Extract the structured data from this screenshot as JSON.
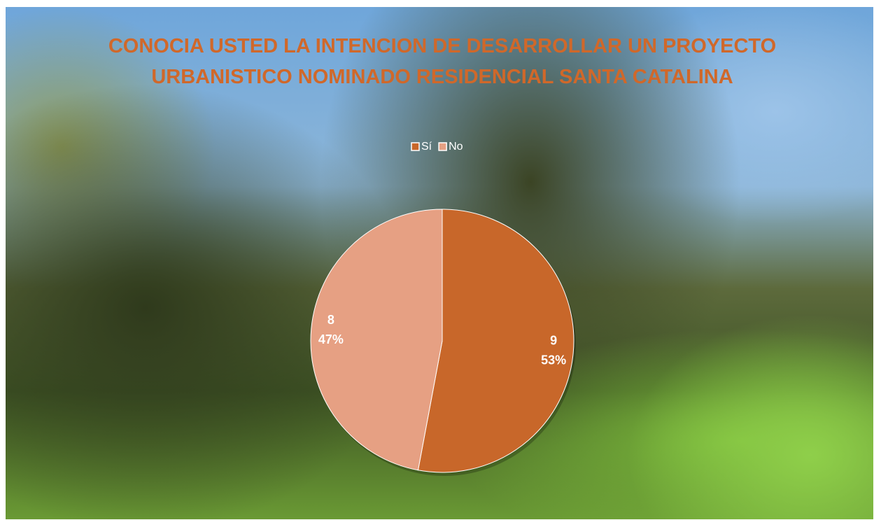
{
  "chart_data": {
    "type": "pie",
    "title": "CONOCIA USTED LA INTENCION DE DESARROLLAR UN PROYECTO URBANISTICO NOMINADO RESIDENCIAL SANTA CATALINA",
    "categories": [
      "Sí",
      "No"
    ],
    "values": [
      9,
      8
    ],
    "percentages": [
      53,
      47
    ],
    "percentage_labels": [
      "53%",
      "47%"
    ],
    "colors": [
      "#c8672a",
      "#e6a083"
    ],
    "legend": "top"
  }
}
